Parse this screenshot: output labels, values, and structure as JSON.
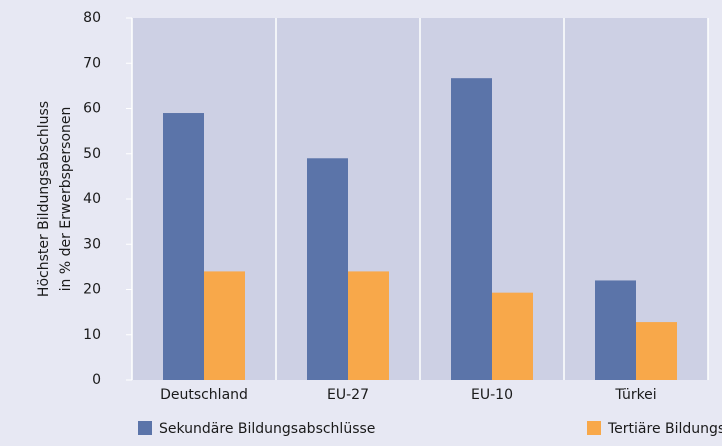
{
  "chart_data": {
    "type": "bar",
    "ylabel": [
      "Höchster Bildungsabschluss",
      "in % der Erwerbspersonen"
    ],
    "categories": [
      "Deutschland",
      "EU-27",
      "EU-10",
      "Türkei"
    ],
    "series": [
      {
        "name": "Sekundäre Bildungsabschlüsse",
        "color": "#5b74a9",
        "values": [
          59,
          49,
          66.7,
          22
        ]
      },
      {
        "name": "Tertiäre Bildungsabschlüsse",
        "color": "#f8a84a",
        "values": [
          24,
          24,
          19.3,
          12.8
        ]
      }
    ],
    "ylim": [
      0,
      80
    ],
    "yticks": [
      0,
      10,
      20,
      30,
      40,
      50,
      60,
      70,
      80
    ],
    "grid": "x",
    "legend": "bottom"
  }
}
